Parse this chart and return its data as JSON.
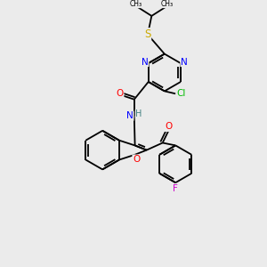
{
  "bg_color": "#ebebeb",
  "bond_color": "#000000",
  "atom_colors": {
    "N": "#0000ff",
    "O": "#ff0000",
    "S": "#ccaa00",
    "Cl": "#00bb00",
    "F": "#cc00cc",
    "C": "#000000",
    "H": "#408080"
  },
  "font_size": 7.5,
  "lw": 1.3
}
